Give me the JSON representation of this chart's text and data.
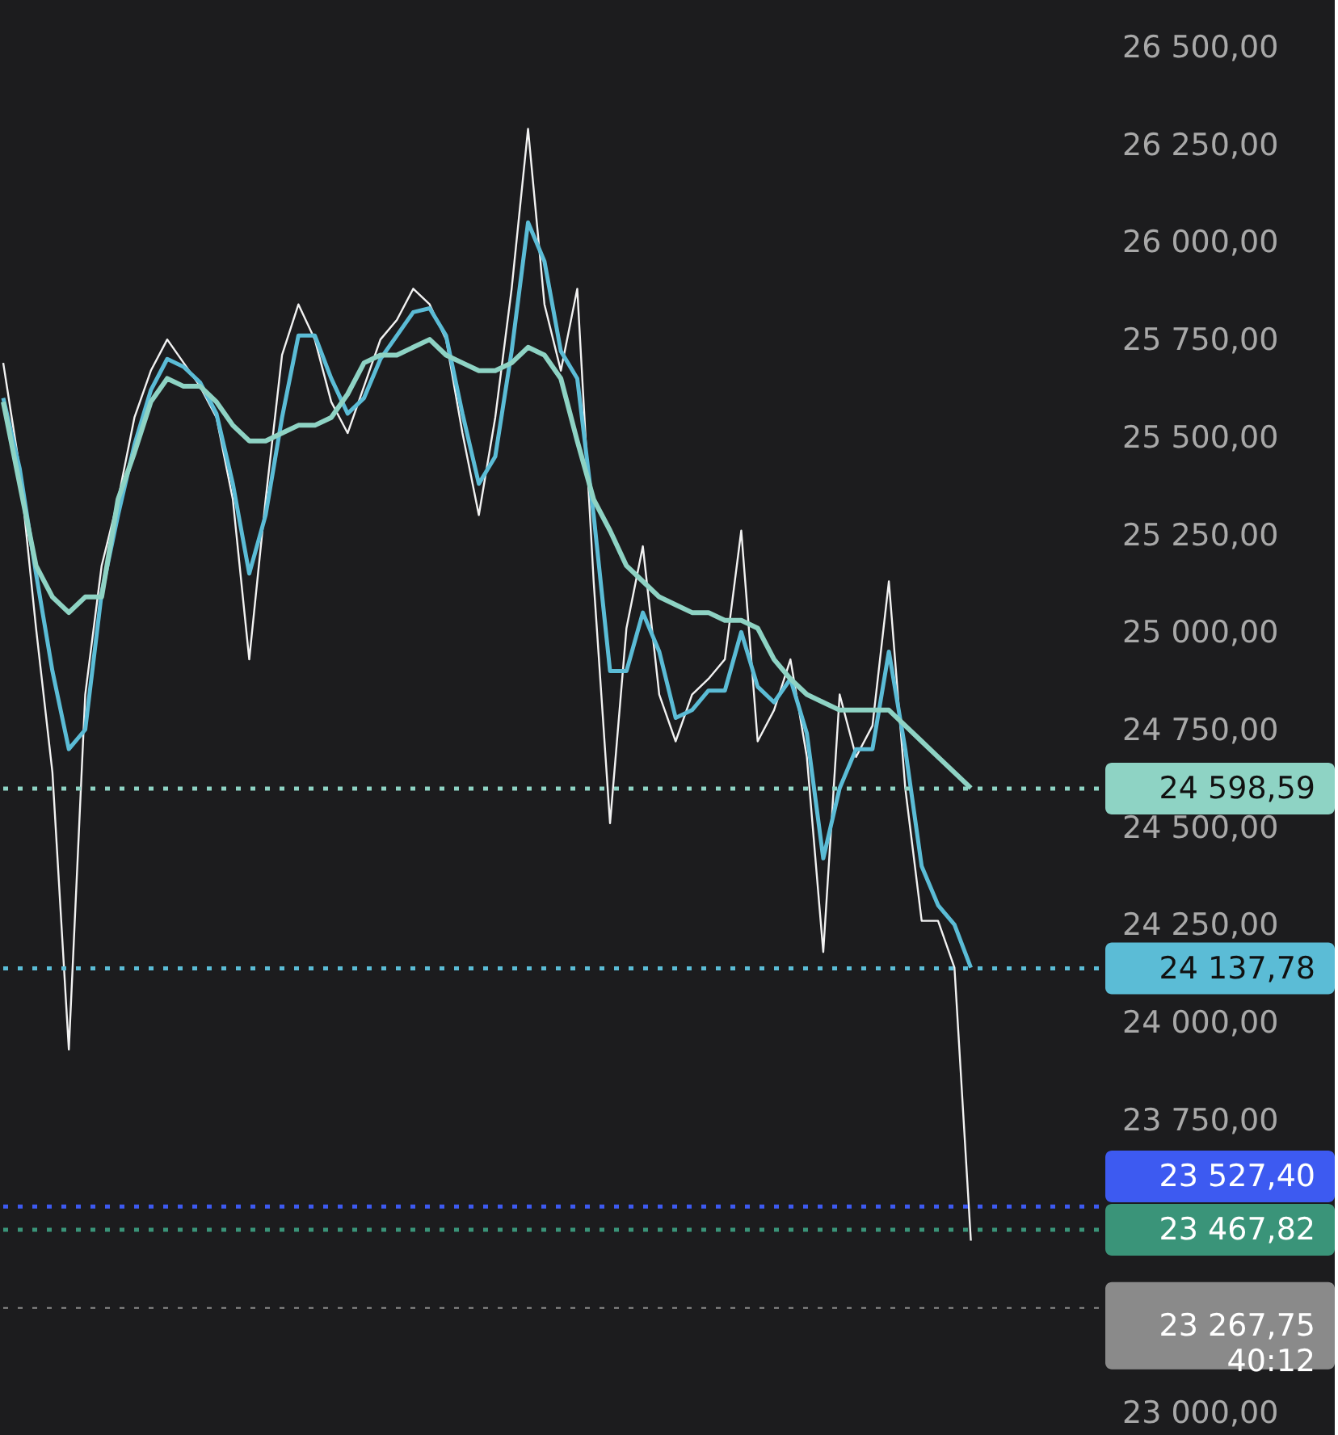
{
  "chart_data": {
    "type": "line",
    "categories": [
      null,
      null,
      null,
      null,
      null,
      null,
      null,
      null,
      null,
      null,
      null,
      null,
      null,
      null,
      null,
      null,
      null,
      null,
      null,
      null,
      null,
      null,
      null,
      null,
      null,
      null,
      null,
      null,
      null,
      null,
      null,
      null,
      null,
      null,
      null,
      null,
      null,
      null,
      null,
      null,
      null,
      null,
      null,
      null,
      null,
      null,
      null,
      null,
      null,
      null,
      null,
      null,
      null,
      null,
      null,
      null,
      null,
      null,
      null,
      null,
      null,
      null,
      null,
      null,
      null,
      null,
      null,
      null
    ],
    "series": [
      {
        "color": "#f2f2f2",
        "values": [
          25690,
          25420,
          25010,
          24640,
          23930,
          24840,
          25170,
          25340,
          25550,
          25670,
          25750,
          25690,
          25630,
          25550,
          25340,
          24930,
          25340,
          25710,
          25840,
          25750,
          25590,
          25510,
          25630,
          25750,
          25800,
          25880,
          25840,
          25750,
          25510,
          25300,
          25550,
          25880,
          26290,
          25840,
          25670,
          25880,
          25130,
          24510,
          25010,
          25220,
          24840,
          24720,
          24840,
          24880,
          24930,
          25260,
          24720,
          24800,
          24930,
          24680,
          24180,
          24840,
          24680,
          24760,
          25130,
          24600,
          24260,
          24260,
          24140,
          23440,
          null,
          null,
          null,
          null,
          null,
          null,
          null,
          null
        ]
      },
      {
        "color": "#5bbcd6",
        "values": [
          25600,
          25420,
          25150,
          24900,
          24700,
          24750,
          25100,
          25300,
          25480,
          25620,
          25700,
          25680,
          25640,
          25560,
          25380,
          25150,
          25300,
          25550,
          25760,
          25760,
          25650,
          25560,
          25600,
          25700,
          25760,
          25820,
          25830,
          25760,
          25560,
          25380,
          25450,
          25720,
          26050,
          25950,
          25720,
          25650,
          25300,
          24900,
          24900,
          25050,
          24950,
          24780,
          24800,
          24850,
          24850,
          25000,
          24860,
          24820,
          24880,
          24740,
          24420,
          24600,
          24700,
          24700,
          24950,
          24700,
          24400,
          24300,
          24250,
          24140,
          null,
          null,
          null,
          null,
          null,
          null,
          null,
          null
        ]
      },
      {
        "color": "#8ed3c4",
        "values": [
          25590,
          25380,
          25170,
          25090,
          25050,
          25090,
          25090,
          25340,
          25460,
          25590,
          25650,
          25630,
          25630,
          25590,
          25530,
          25490,
          25490,
          25510,
          25530,
          25530,
          25550,
          25610,
          25690,
          25710,
          25710,
          25730,
          25750,
          25710,
          25690,
          25670,
          25670,
          25690,
          25730,
          25710,
          25650,
          25490,
          25340,
          25260,
          25170,
          25130,
          25090,
          25070,
          25050,
          25050,
          25030,
          25030,
          25010,
          24930,
          24880,
          24840,
          24820,
          24800,
          24800,
          24800,
          24800,
          24760,
          24720,
          24680,
          24640,
          24600,
          null,
          null,
          null,
          null,
          null,
          null,
          null,
          null
        ]
      }
    ],
    "ylim": [
      23000,
      26500
    ],
    "yticks": [
      {
        "value": 23000,
        "label": "23 000,00"
      },
      {
        "value": 23750,
        "label": "23 750,00"
      },
      {
        "value": 24000,
        "label": "24 000,00"
      },
      {
        "value": 24250,
        "label": "24 250,00"
      },
      {
        "value": 24500,
        "label": "24 500,00"
      },
      {
        "value": 24750,
        "label": "24 750,00"
      },
      {
        "value": 25000,
        "label": "25 000,00"
      },
      {
        "value": 25250,
        "label": "25 250,00"
      },
      {
        "value": 25500,
        "label": "25 500,00"
      },
      {
        "value": 25750,
        "label": "25 750,00"
      },
      {
        "value": 26000,
        "label": "26 000,00"
      },
      {
        "value": 26250,
        "label": "26 250,00"
      },
      {
        "value": 26500,
        "label": "26 500,00"
      }
    ],
    "ref_lines": [
      {
        "axis": "y",
        "value": 24598.59,
        "label": "24 598,59",
        "color": "#8ed3c4",
        "line_style": "dotted"
      },
      {
        "axis": "y",
        "value": 24137.78,
        "label": "24 137,78",
        "color": "#5bbcd6",
        "line_style": "dotted"
      },
      {
        "axis": "y",
        "value": 23527.4,
        "label": "23 527,40",
        "color": "#3d5af1",
        "line_style": "dotted"
      },
      {
        "axis": "y",
        "value": 23467.82,
        "label": "23 467,82",
        "color": "#3a9479",
        "line_style": "dotted"
      },
      {
        "axis": "y",
        "value": 23267.75,
        "label": "23 267,75\n40:12",
        "color": "#8a8a8a",
        "line_style": "dotted"
      }
    ],
    "grid": false,
    "marker": "none",
    "line_style": "solid"
  }
}
